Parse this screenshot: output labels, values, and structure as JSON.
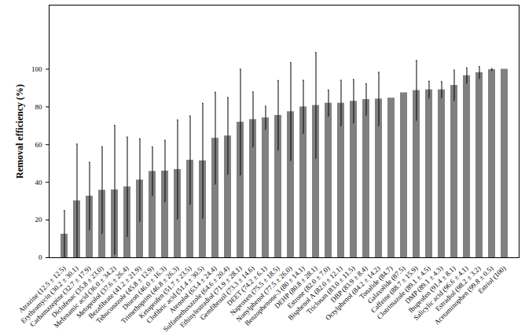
{
  "chart_data": {
    "type": "bar",
    "y_label": "Removal efficiency (%)",
    "categories": [
      "Atrazine (12.5 ± 12.5)",
      "Erythromycin (30.2 ± 30.1)",
      "Carbamazepine (32.7 ± 17.9)",
      "Diclofenac (35.8 ± 23.0)",
      "Mefenamic acid (36.0 ± 34.2)",
      "Metoprolol (37.6 ± 26.4)",
      "Bezafibrate (41.2 ± 21.9)",
      "Tebuconazole (45.8 ± 12.9)",
      "Diuron (46.0 ± 16.3)",
      "Trimethoprim (46.8 ± 26.3)",
      "Ketoprofen (51.7 ± 23.5)",
      "Clofibric acid (51.4 ± 30.5)",
      "Atenolol (63.4 ± 24.4)",
      "Sulfamethoxazole (64.6 ± 20.4)",
      "Ethinylestradiol (71.9 ± 28.1)",
      "Gemfibrozil (73.3 ± 14.6)",
      "DEET (74.2 ± 6.1)",
      "Naproxen (75.5 ± 18.5)",
      "Nonylphenol (77.5 ± 26.0)",
      "Benzophenone-3 (80 ± 14.1)",
      "DEHP (80.8 ± 28.1)",
      "Estrone (82.0 ± 7.0)",
      "Bisphenol A (82.0 ± 12.1)",
      "Triclosan (83.0 ± 11.5)",
      "DBP (83.9 ± 8.4)",
      "Octylphenol (84.2 ± 14.2)",
      "Tonalide (84.7)",
      "Galaxolide (87.5)",
      "Caffeine (88.7 ± 15.9)",
      "Clotrimazole (89.1 ± 4.5)",
      "DMP (89.1 ± 4.3)",
      "Ibuprofen (91.4 ± 8.1)",
      "Salicylic acid (96.6 ± 4.1)",
      "Estradiol (98.2 ± 3.2)",
      "Acetaminophen (99.8 ± 0.5)",
      "Estriol (100)"
    ],
    "values": [
      12.5,
      30.2,
      32.7,
      35.8,
      36.0,
      37.6,
      41.2,
      45.8,
      46.0,
      46.8,
      51.7,
      51.4,
      63.4,
      64.6,
      71.9,
      73.3,
      74.2,
      75.5,
      77.5,
      80,
      80.8,
      82.0,
      82.0,
      83.0,
      83.9,
      84.2,
      84.7,
      87.5,
      88.7,
      89.1,
      89.1,
      91.4,
      96.6,
      98.2,
      99.8,
      100
    ],
    "error": [
      12.5,
      30.1,
      17.9,
      23.0,
      34.2,
      26.4,
      21.9,
      12.9,
      16.3,
      26.3,
      23.5,
      30.5,
      24.4,
      20.4,
      28.1,
      14.6,
      6.1,
      18.5,
      26.0,
      14.1,
      28.1,
      7.0,
      12.1,
      11.5,
      8.4,
      14.2,
      null,
      null,
      15.9,
      4.5,
      4.3,
      8.1,
      4.1,
      3.2,
      0.5,
      null
    ],
    "color": "#808080",
    "ylim": [
      0,
      134
    ],
    "yticks": [
      0,
      20,
      40,
      60,
      80,
      100
    ],
    "grid": false
  }
}
